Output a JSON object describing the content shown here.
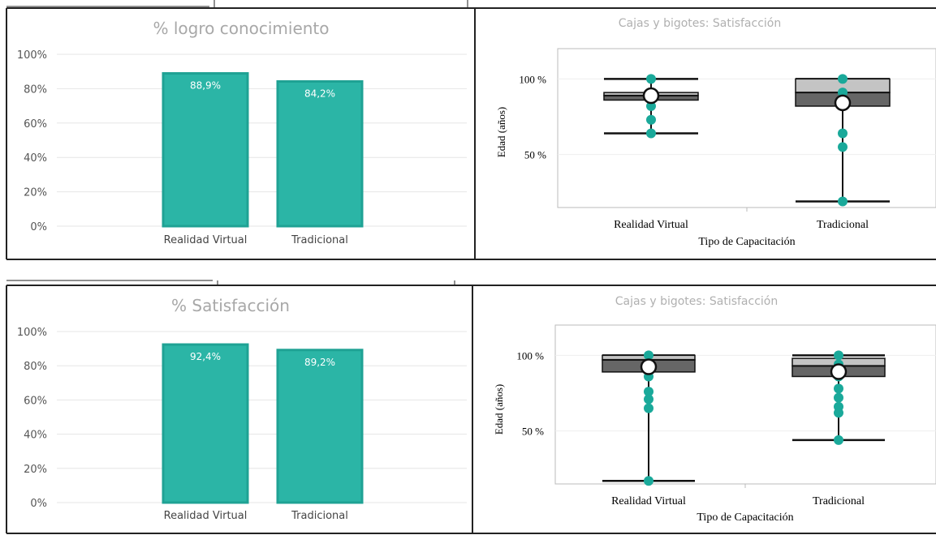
{
  "colors": {
    "bar": "#2bb5a6",
    "bar_border": "#1fa294",
    "bar_label": "#ffffff",
    "point": "#1aa99a",
    "box_dark": "#666666",
    "box_light": "#c4c4c4",
    "title_gray": "#a8a8a8",
    "panel_border": "#222222"
  },
  "chart_data": [
    {
      "type": "bar",
      "title": "% logro conocimiento",
      "categories": [
        "Realidad Virtual",
        "Tradicional"
      ],
      "values": [
        88.9,
        84.2
      ],
      "value_labels": [
        "88,9%",
        "84,2%"
      ],
      "yticks": [
        "0%",
        "20%",
        "40%",
        "60%",
        "80%",
        "100%"
      ],
      "ylim": [
        0,
        100
      ],
      "grid": true
    },
    {
      "type": "box",
      "title": "Cajas y bigotes: Satisfacción",
      "xlabel": "Tipo de Capacitación",
      "ylabel": "Edad (años)",
      "ytick_values": [
        50,
        100
      ],
      "yticks": [
        "50 %",
        "100 %"
      ],
      "ylim": [
        15,
        120
      ],
      "categories": [
        "Realidad Virtual",
        "Tradicional"
      ],
      "boxes": [
        {
          "whisker_low": 64,
          "q1": 86,
          "median": 89,
          "q3": 91,
          "whisker_high": 100,
          "mean": 88.9,
          "points": [
            100,
            91,
            82,
            73,
            64
          ]
        },
        {
          "whisker_low": 19,
          "q1": 82,
          "median": 91,
          "q3": 100,
          "whisker_high": 100,
          "mean": 84.2,
          "points": [
            100,
            91,
            64,
            55,
            19
          ]
        }
      ],
      "grid": true
    },
    {
      "type": "bar",
      "title": "% Satisfacción",
      "categories": [
        "Realidad Virtual",
        "Tradicional"
      ],
      "values": [
        92.4,
        89.2
      ],
      "value_labels": [
        "92,4%",
        "89,2%"
      ],
      "yticks": [
        "0%",
        "20%",
        "40%",
        "60%",
        "80%",
        "100%"
      ],
      "ylim": [
        0,
        100
      ],
      "grid": true
    },
    {
      "type": "box",
      "title": "Cajas y bigotes: Satisfacción",
      "xlabel": "Tipo de Capacitación",
      "ylabel": "Edad (años)",
      "ytick_values": [
        50,
        100
      ],
      "yticks": [
        "50 %",
        "100 %"
      ],
      "ylim": [
        15,
        120
      ],
      "categories": [
        "Realidad Virtual",
        "Tradicional"
      ],
      "boxes": [
        {
          "whisker_low": 17,
          "q1": 89,
          "median": 97,
          "q3": 100,
          "whisker_high": 100,
          "mean": 92.4,
          "points": [
            100,
            94,
            86,
            76,
            71,
            65,
            17
          ]
        },
        {
          "whisker_low": 44,
          "q1": 86,
          "median": 93,
          "q3": 98,
          "whisker_high": 100,
          "mean": 89.2,
          "points": [
            100,
            94,
            86,
            78,
            72,
            66,
            62,
            44
          ]
        }
      ],
      "grid": true
    }
  ]
}
